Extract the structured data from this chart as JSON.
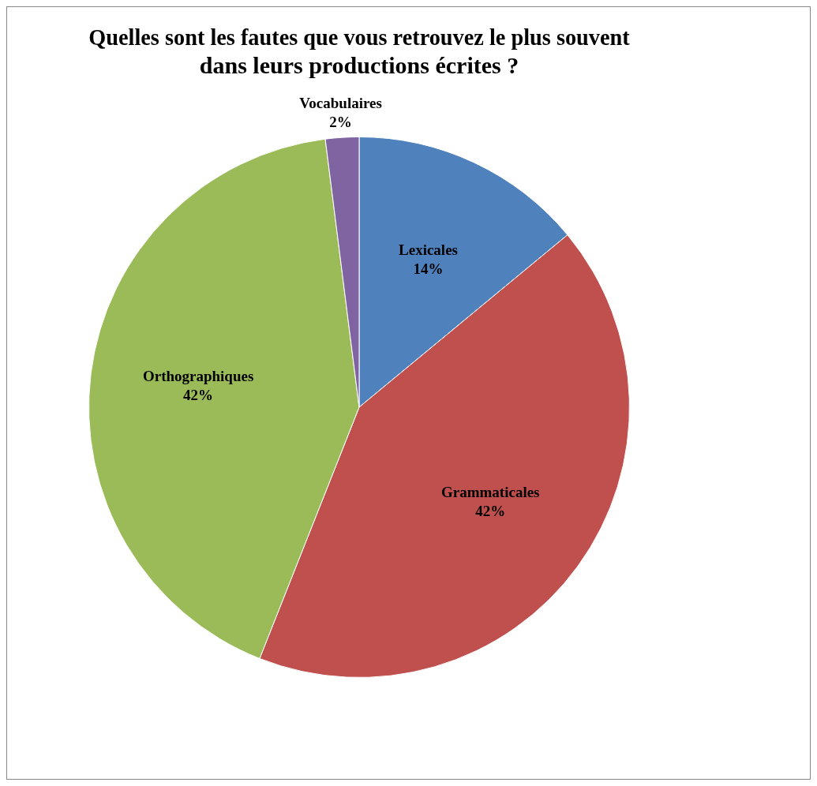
{
  "chart_data": {
    "type": "pie",
    "title": "Quelles sont les fautes que vous retrouvez le plus souvent\ndans leurs productions écrites ?",
    "categories": [
      "Lexicales",
      "Grammaticales",
      "Orthographiques",
      "Vocabulaires"
    ],
    "values": [
      14,
      42,
      42,
      2
    ],
    "colors": [
      "#4f81bd",
      "#c0504d",
      "#9bbb59",
      "#8064a2"
    ],
    "value_labels": [
      "14%",
      "42%",
      "42%",
      "2%"
    ],
    "legend": false
  }
}
